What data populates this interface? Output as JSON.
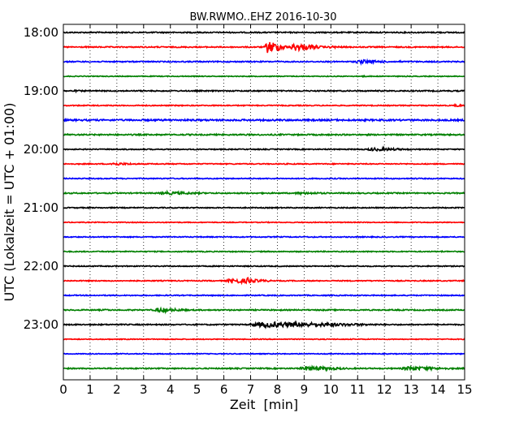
{
  "chart_data": {
    "type": "line",
    "title": "BW.RWMO..EHZ 2016-10-30",
    "xlabel": "Zeit  [min]",
    "ylabel": "UTC (Lokalzeit = UTC + 01:00)",
    "xlim": [
      0,
      15
    ],
    "x_ticks": [
      "0",
      "1",
      "2",
      "3",
      "4",
      "5",
      "6",
      "7",
      "8",
      "9",
      "10",
      "11",
      "12",
      "13",
      "14",
      "15"
    ],
    "y_tick_labels": [
      "18:00",
      "19:00",
      "20:00",
      "21:00",
      "22:00",
      "23:00"
    ],
    "grid": "vertical dotted",
    "colors": [
      "#000000",
      "#ff0000",
      "#0000ff",
      "#008000"
    ],
    "series": [
      {
        "start": "18:00",
        "noise": 0.7,
        "events": []
      },
      {
        "start": "18:15",
        "noise": 0.7,
        "events": [
          [
            7.5,
            8.4,
            8.0
          ],
          [
            8.4,
            9.8,
            5.0
          ],
          [
            9.8,
            11.0,
            1.5
          ]
        ]
      },
      {
        "start": "18:30",
        "noise": 0.7,
        "events": [
          [
            10.8,
            12.5,
            2.5
          ],
          [
            12.5,
            13.0,
            1.2
          ]
        ]
      },
      {
        "start": "18:45",
        "noise": 0.5,
        "events": [
          [
            11.0,
            12.2,
            0.8
          ]
        ]
      },
      {
        "start": "19:00",
        "noise": 0.7,
        "events": [
          [
            0.3,
            1.0,
            1.2
          ]
        ]
      },
      {
        "start": "19:15",
        "noise": 0.6,
        "events": [
          [
            6.0,
            7.0,
            0.8
          ],
          [
            14.6,
            15.0,
            2.0
          ]
        ]
      },
      {
        "start": "19:30",
        "noise": 1.0,
        "events": [
          [
            9.0,
            10.0,
            0.8
          ],
          [
            12.5,
            13.0,
            0.8
          ]
        ]
      },
      {
        "start": "19:45",
        "noise": 0.8,
        "events": [
          [
            0.0,
            1.0,
            1.0
          ]
        ]
      },
      {
        "start": "20:00",
        "noise": 0.6,
        "events": [
          [
            11.2,
            13.5,
            2.0
          ]
        ]
      },
      {
        "start": "20:15",
        "noise": 0.6,
        "events": [
          [
            1.6,
            3.1,
            1.8
          ]
        ]
      },
      {
        "start": "20:30",
        "noise": 0.6,
        "events": [
          [
            13.0,
            14.0,
            0.8
          ]
        ]
      },
      {
        "start": "20:45",
        "noise": 0.7,
        "events": [
          [
            3.4,
            5.9,
            2.0
          ],
          [
            8.5,
            10.5,
            1.6
          ]
        ]
      },
      {
        "start": "21:00",
        "noise": 0.6,
        "events": []
      },
      {
        "start": "21:15",
        "noise": 0.5,
        "events": []
      },
      {
        "start": "21:30",
        "noise": 0.6,
        "events": []
      },
      {
        "start": "21:45",
        "noise": 0.6,
        "events": [
          [
            14.0,
            15.0,
            0.8
          ]
        ]
      },
      {
        "start": "22:00",
        "noise": 0.6,
        "events": [
          [
            8.0,
            8.4,
            0.8
          ]
        ]
      },
      {
        "start": "22:15",
        "noise": 0.6,
        "events": [
          [
            6.0,
            8.0,
            3.2
          ],
          [
            6.8,
            7.2,
            4.8
          ]
        ]
      },
      {
        "start": "22:30",
        "noise": 0.6,
        "events": []
      },
      {
        "start": "22:45",
        "noise": 0.7,
        "events": [
          [
            1.5,
            2.0,
            1.2
          ],
          [
            3.3,
            4.9,
            2.8
          ]
        ]
      },
      {
        "start": "23:00",
        "noise": 0.7,
        "events": [
          [
            6.7,
            12.3,
            3.5
          ]
        ]
      },
      {
        "start": "23:15",
        "noise": 0.5,
        "events": []
      },
      {
        "start": "23:30",
        "noise": 0.5,
        "events": []
      },
      {
        "start": "23:45",
        "noise": 0.7,
        "events": [
          [
            8.7,
            11.0,
            2.8
          ],
          [
            12.5,
            15.0,
            2.6
          ]
        ]
      }
    ]
  }
}
